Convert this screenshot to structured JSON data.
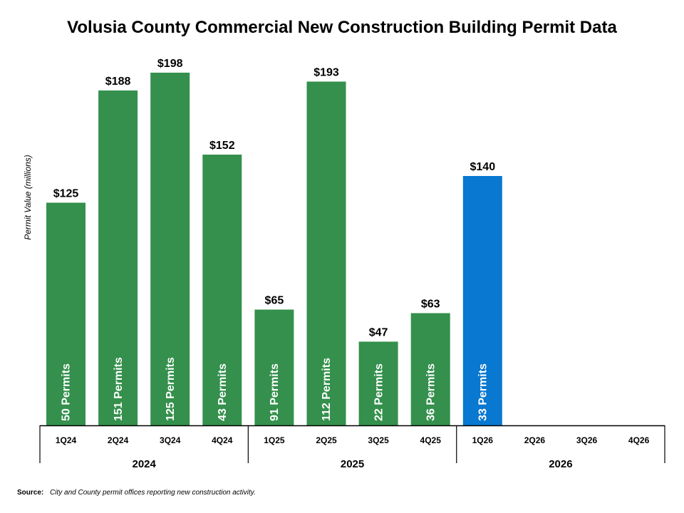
{
  "chart_data": {
    "type": "bar",
    "title": "Volusia County Commercial New Construction Building Permit Data",
    "ylabel": "Permit Value (millions)",
    "ylim": [
      0,
      200
    ],
    "grid": false,
    "categories": [
      "1Q24",
      "2Q24",
      "3Q24",
      "4Q24",
      "1Q25",
      "2Q25",
      "3Q25",
      "4Q25",
      "1Q26",
      "2Q26",
      "3Q26",
      "4Q26"
    ],
    "values": [
      125,
      188,
      198,
      152,
      65,
      193,
      47,
      63,
      140,
      null,
      null,
      null
    ],
    "value_labels": [
      "$125",
      "$188",
      "$198",
      "$152",
      "$65",
      "$193",
      "$47",
      "$63",
      "$140",
      "",
      "",
      ""
    ],
    "permit_labels": [
      "50 Permits",
      "151 Permits",
      "125 Permits",
      "43 Permits",
      "91 Permits",
      "112 Permits",
      "22 Permits",
      "36 Permits",
      "33 Permits",
      "",
      "",
      ""
    ],
    "bar_colors": [
      "#34904c",
      "#34904c",
      "#34904c",
      "#34904c",
      "#34904c",
      "#34904c",
      "#34904c",
      "#34904c",
      "#0878d0",
      "#34904c",
      "#34904c",
      "#34904c"
    ],
    "groups": [
      {
        "label": "2024",
        "start": 0,
        "end": 3
      },
      {
        "label": "2025",
        "start": 4,
        "end": 7
      },
      {
        "label": "2026",
        "start": 8,
        "end": 11
      }
    ]
  },
  "source": {
    "label": "Source:",
    "text": "City and County permit offices reporting new construction activity."
  }
}
